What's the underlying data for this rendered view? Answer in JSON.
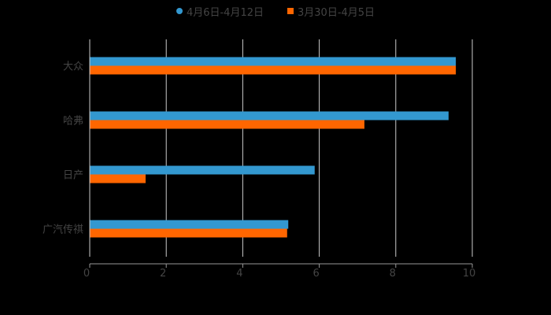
{
  "chart_data": {
    "type": "bar",
    "orientation": "horizontal",
    "title": "",
    "xlabel": "",
    "ylabel": "",
    "categories": [
      "大众",
      "哈弗",
      "日产",
      "广汽传祺"
    ],
    "series": [
      {
        "name": "4月6日-4月12日",
        "color": "#3398d0",
        "marker": "circle",
        "values": [
          9.57,
          9.38,
          5.88,
          5.19
        ]
      },
      {
        "name": "3月30日-4月5日",
        "color": "#ff6600",
        "marker": "square",
        "values": [
          9.57,
          7.18,
          1.46,
          5.16
        ]
      }
    ],
    "xlim": [
      0,
      10
    ],
    "xticks": [
      0,
      2,
      4,
      6,
      8,
      10
    ],
    "grid": "vertical",
    "legend_position": "top"
  },
  "legend": {
    "items": [
      {
        "label": "4月6日-4月12日",
        "color": "#3398d0"
      },
      {
        "label": "3月30日-4月5日",
        "color": "#ff6600"
      }
    ]
  },
  "colors": {
    "background": "#000000",
    "grid": "#cccccc",
    "axis": "#999999",
    "text": "#444444"
  }
}
